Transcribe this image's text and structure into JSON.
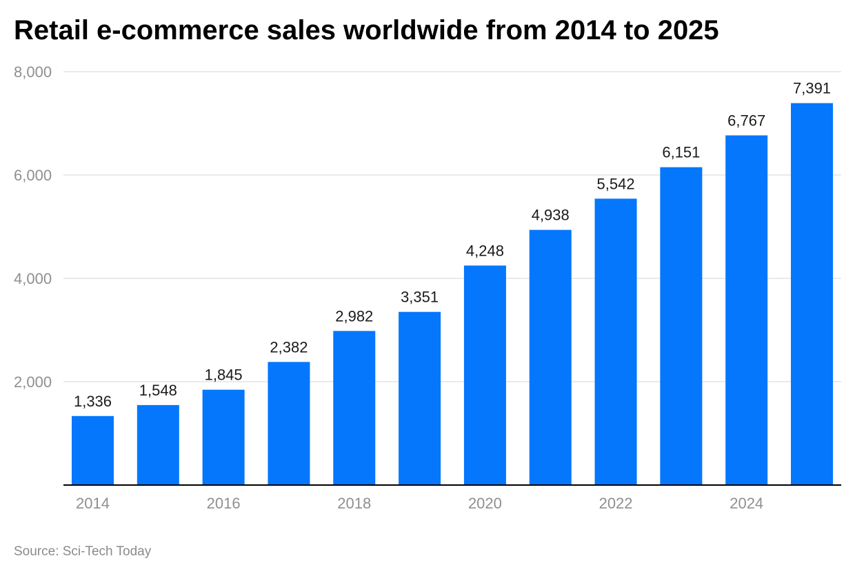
{
  "chart_data": {
    "type": "bar",
    "title": "Retail e-commerce sales worldwide from 2014 to 2025",
    "categories": [
      "2014",
      "2015",
      "2016",
      "2017",
      "2018",
      "2019",
      "2020",
      "2021",
      "2022",
      "2023",
      "2024",
      "2025"
    ],
    "values": [
      1336,
      1548,
      1845,
      2382,
      2982,
      3351,
      4248,
      4938,
      5542,
      6151,
      6767,
      7391
    ],
    "value_labels": [
      "1,336",
      "1,548",
      "1,845",
      "2,382",
      "2,982",
      "3,351",
      "4,248",
      "4,938",
      "5,542",
      "6,151",
      "6,767",
      "7,391"
    ],
    "x_tick_labels": [
      "2014",
      "2016",
      "2018",
      "2020",
      "2022",
      "2024"
    ],
    "y_ticks": [
      2000,
      4000,
      6000,
      8000
    ],
    "y_tick_labels": [
      "2,000",
      "4,000",
      "6,000",
      "8,000"
    ],
    "ylim": [
      0,
      8000
    ],
    "xlabel": "",
    "ylabel": "",
    "grid": true,
    "legend": "none",
    "bar_color": "#0477fd",
    "label_color": "#1a1a1a",
    "tick_color": "#8f8f8f",
    "grid_color": "#e3e3e3",
    "axis_color": "#000000"
  },
  "source": {
    "text": "Source: Sci-Tech Today"
  }
}
